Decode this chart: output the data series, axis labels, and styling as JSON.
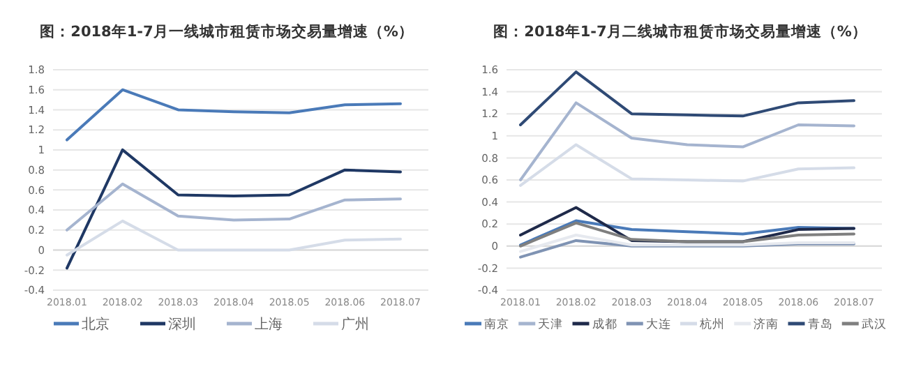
{
  "chart_data": [
    {
      "type": "line",
      "title": "图：2018年1-7月一线城市租赁市场交易量增速（%）",
      "categories": [
        "2018.01",
        "2018.02",
        "2018.03",
        "2018.04",
        "2018.05",
        "2018.06",
        "2018.07"
      ],
      "series": [
        {
          "name": "北京",
          "color": "#4a7ab8",
          "values": [
            1.1,
            1.6,
            1.4,
            1.38,
            1.37,
            1.45,
            1.46
          ]
        },
        {
          "name": "深圳",
          "color": "#1f3864",
          "values": [
            -0.18,
            1.0,
            0.55,
            0.54,
            0.55,
            0.8,
            0.78
          ]
        },
        {
          "name": "上海",
          "color": "#a5b4cf",
          "values": [
            0.2,
            0.66,
            0.34,
            0.3,
            0.31,
            0.5,
            0.51
          ]
        },
        {
          "name": "广州",
          "color": "#d5dce8",
          "values": [
            -0.05,
            0.29,
            0,
            0,
            0,
            0.1,
            0.11
          ]
        }
      ],
      "ylim": [
        -0.4,
        1.8
      ],
      "yticks": [
        -0.4,
        -0.2,
        0,
        0.2,
        0.4,
        0.6,
        0.8,
        1,
        1.2,
        1.4,
        1.6,
        1.8
      ],
      "grid": "y",
      "legend": "bottom"
    },
    {
      "type": "line",
      "title": "图：2018年1-7月二线城市租赁市场交易量增速（%）",
      "categories": [
        "2018.01",
        "2018.02",
        "2018.03",
        "2018.04",
        "2018.05",
        "2018.06",
        "2018.07"
      ],
      "series": [
        {
          "name": "南京",
          "color": "#4a7ab8",
          "values": [
            0.01,
            0.23,
            0.15,
            0.13,
            0.11,
            0.17,
            0.16
          ]
        },
        {
          "name": "天津",
          "color": "#a5b4cf",
          "values": [
            0.6,
            1.3,
            0.98,
            0.92,
            0.9,
            1.1,
            1.09
          ]
        },
        {
          "name": "成都",
          "color": "#1f2a4a",
          "values": [
            0.1,
            0.35,
            0.05,
            0.04,
            0.04,
            0.15,
            0.16
          ]
        },
        {
          "name": "大连",
          "color": "#7f93b3",
          "values": [
            -0.1,
            0.05,
            0,
            0,
            0,
            0.02,
            0.02
          ]
        },
        {
          "name": "杭州",
          "color": "#d5dce8",
          "values": [
            0.55,
            0.92,
            0.61,
            0.6,
            0.59,
            0.7,
            0.71
          ]
        },
        {
          "name": "济南",
          "color": "#e6e9ef",
          "values": [
            -0.05,
            0.1,
            0.01,
            0.01,
            0.01,
            0.03,
            0.03
          ]
        },
        {
          "name": "青岛",
          "color": "#2f4a75",
          "values": [
            1.1,
            1.58,
            1.2,
            1.19,
            1.18,
            1.3,
            1.32
          ]
        },
        {
          "name": "武汉",
          "color": "#7f7f7f",
          "values": [
            0,
            0.21,
            0.06,
            0.04,
            0.04,
            0.1,
            0.11
          ]
        }
      ],
      "ylim": [
        -0.4,
        1.6
      ],
      "yticks": [
        -0.4,
        -0.2,
        0,
        0.2,
        0.4,
        0.6,
        0.8,
        1,
        1.2,
        1.4,
        1.6
      ],
      "grid": "y",
      "legend": "bottom"
    }
  ]
}
